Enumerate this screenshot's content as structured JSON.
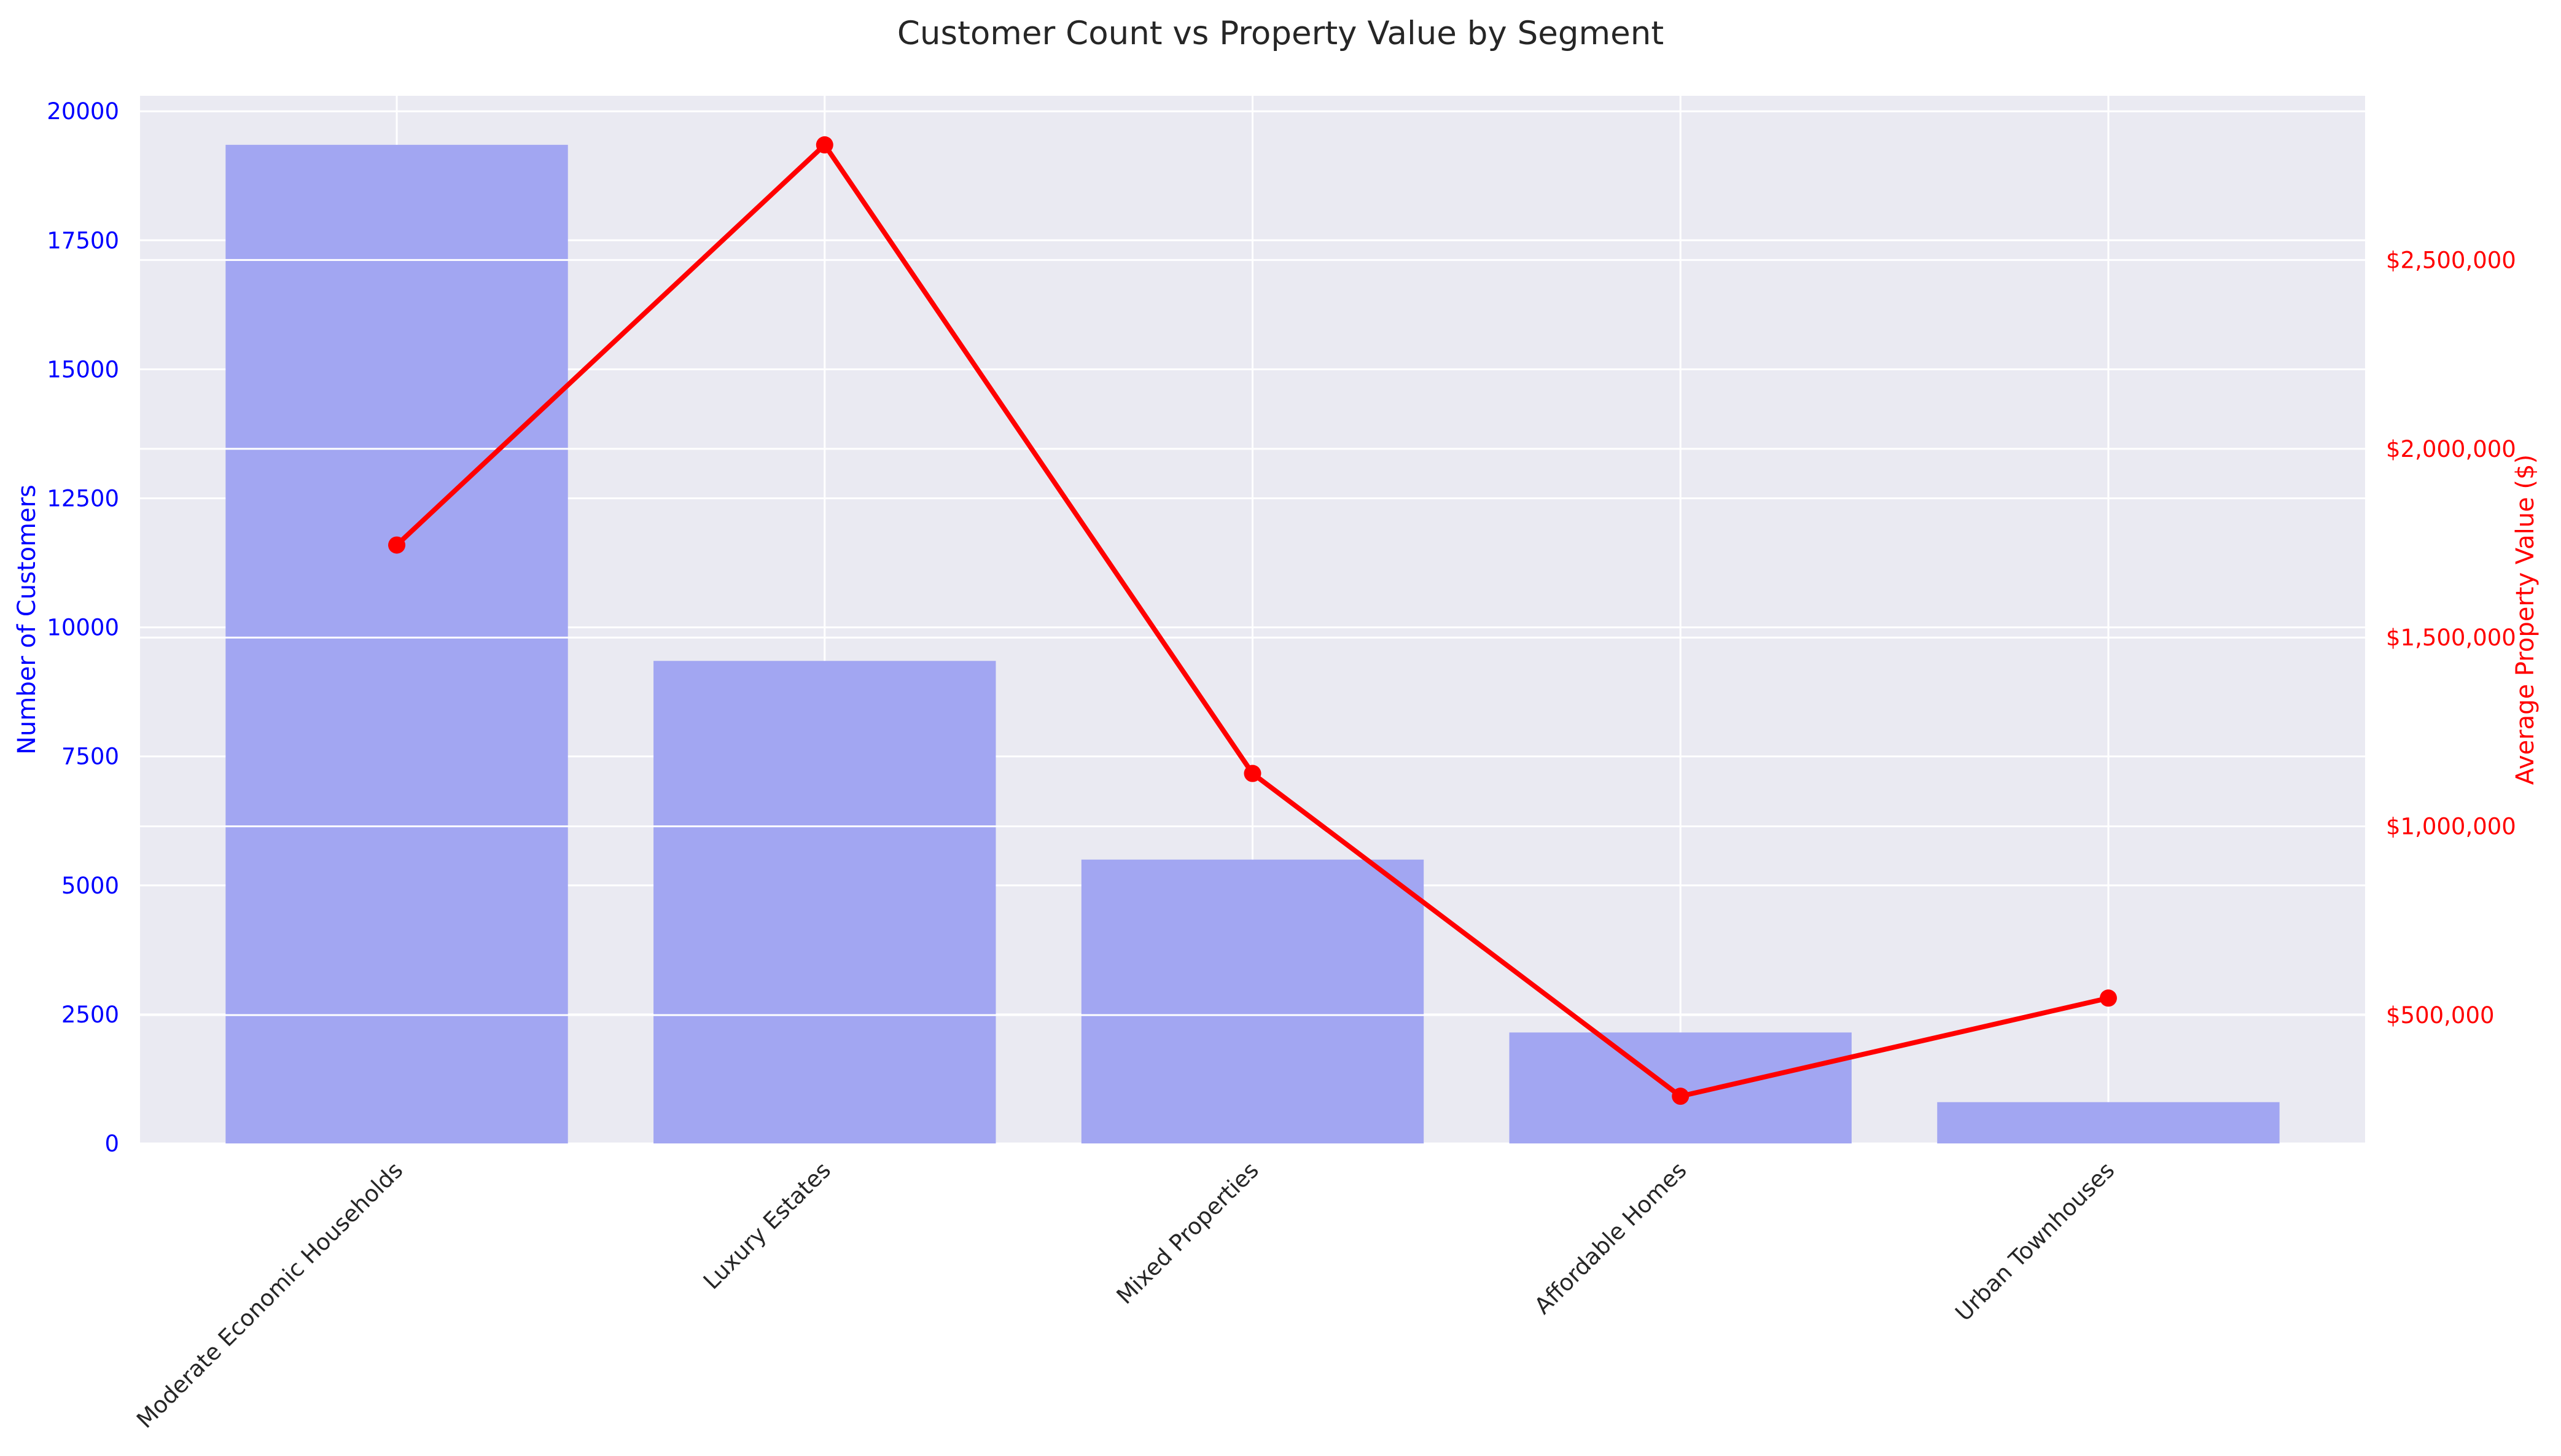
{
  "chart_data": {
    "type": "bar",
    "title": "Customer Count vs Property Value by Segment",
    "xlabel": "",
    "categories": [
      "Moderate Economic Households",
      "Luxury Estates",
      "Mixed Properties",
      "Affordable Homes",
      "Urban Townhouses"
    ],
    "series": [
      {
        "name": "",
        "type": "bar",
        "axis": "left",
        "color": "#a2a6f2",
        "values": [
          19350,
          9350,
          5500,
          2150,
          800
        ]
      },
      {
        "name": "",
        "type": "line",
        "axis": "right",
        "color": "#ff0000",
        "values": [
          1745000,
          2805000,
          1140000,
          285000,
          545000
        ]
      }
    ],
    "y_left": {
      "label": "Number of Customers",
      "range": [
        0,
        20300
      ],
      "ticks": [
        0,
        2500,
        5000,
        7500,
        10000,
        12500,
        15000,
        17500,
        20000
      ],
      "tick_labels": [
        "0",
        "2500",
        "5000",
        "7500",
        "10000",
        "12500",
        "15000",
        "17500",
        "20000"
      ],
      "color": "#0000ff"
    },
    "y_right": {
      "label": "Average Property Value ($)",
      "range": [
        160000,
        2935000
      ],
      "ticks": [
        500000,
        1000000,
        1500000,
        2000000,
        2500000
      ],
      "tick_labels": [
        "$500,000",
        "$1,000,000",
        "$1,500,000",
        "$2,000,000",
        "$2,500,000"
      ],
      "color": "#ff0000"
    },
    "grid": true,
    "background_color": "#eaeaf2",
    "legend": "none"
  }
}
